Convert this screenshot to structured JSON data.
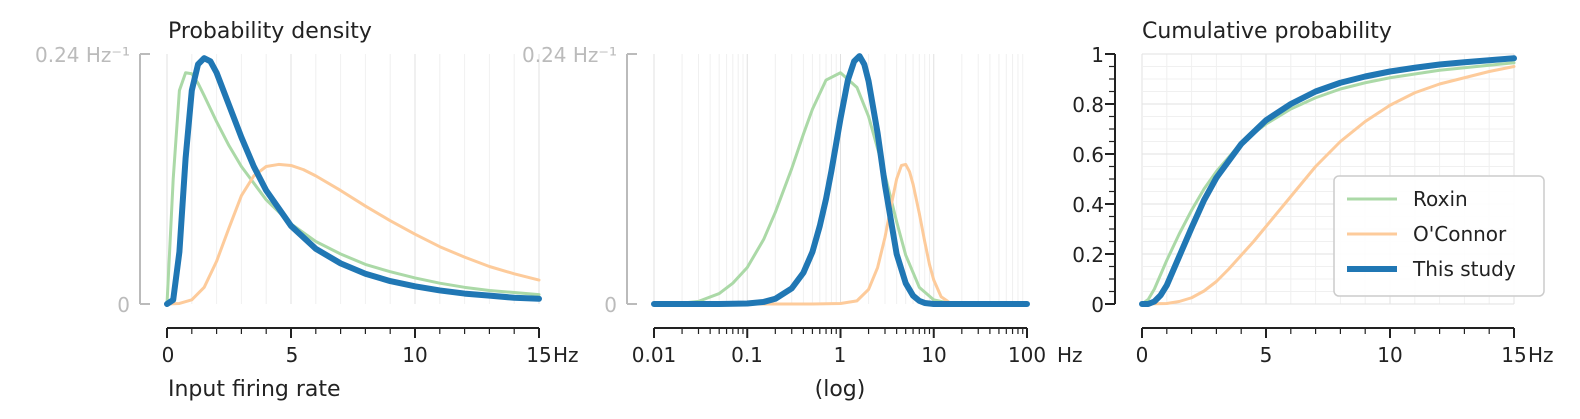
{
  "colors": {
    "roxin": "#abd9a7",
    "oconnor": "#fdcb9b",
    "this_study": "#2077b4",
    "grey_axis": "#bbbbbb",
    "grid": "#e6e6e6"
  },
  "series_names": [
    "Roxin",
    "O'Connor",
    "This study"
  ],
  "chart_data": [
    {
      "type": "line",
      "title": "Probability density",
      "xlabel": "Input firing rate",
      "x_unit": "Hz",
      "xlim": [
        0,
        15
      ],
      "x_ticks": [
        "0",
        "5",
        "10",
        "15"
      ],
      "y_ticks": [
        "0",
        "0.24 Hz⁻¹"
      ],
      "ylim": [
        0,
        0.24
      ],
      "grid": true,
      "series": [
        {
          "name": "Roxin",
          "x": [
            0,
            0.25,
            0.5,
            0.75,
            1,
            1.25,
            1.5,
            2,
            2.5,
            3,
            4,
            5,
            6,
            7,
            8,
            9,
            10,
            11,
            12,
            13,
            14,
            15
          ],
          "values": [
            0,
            0.12,
            0.205,
            0.222,
            0.221,
            0.212,
            0.2,
            0.175,
            0.152,
            0.132,
            0.1,
            0.077,
            0.06,
            0.048,
            0.038,
            0.031,
            0.025,
            0.02,
            0.016,
            0.013,
            0.011,
            0.009
          ]
        },
        {
          "name": "O'Connor",
          "x": [
            0,
            0.5,
            1,
            1.5,
            2,
            2.5,
            3,
            3.5,
            4,
            4.5,
            5,
            5.5,
            6,
            7,
            8,
            9,
            10,
            11,
            12,
            13,
            14,
            15
          ],
          "values": [
            0,
            0.0005,
            0.004,
            0.016,
            0.041,
            0.073,
            0.104,
            0.123,
            0.132,
            0.134,
            0.133,
            0.129,
            0.123,
            0.109,
            0.094,
            0.08,
            0.067,
            0.055,
            0.045,
            0.036,
            0.029,
            0.023
          ]
        },
        {
          "name": "This study",
          "x": [
            0,
            0.25,
            0.5,
            0.75,
            1,
            1.25,
            1.5,
            1.75,
            2,
            2.5,
            3,
            3.5,
            4,
            5,
            6,
            7,
            8,
            9,
            10,
            11,
            12,
            13,
            14,
            15
          ],
          "values": [
            0,
            0.004,
            0.05,
            0.14,
            0.205,
            0.23,
            0.236,
            0.233,
            0.222,
            0.191,
            0.16,
            0.132,
            0.109,
            0.075,
            0.053,
            0.039,
            0.029,
            0.022,
            0.017,
            0.013,
            0.01,
            0.008,
            0.006,
            0.005
          ]
        }
      ]
    },
    {
      "type": "line",
      "title": "",
      "xlabel": "(log)",
      "x_unit": "Hz",
      "x_scale": "log",
      "xlim": [
        0.01,
        100
      ],
      "x_ticks": [
        "0.01",
        "0.1",
        "1",
        "10",
        "100"
      ],
      "y_ticks": [
        "0",
        "0.24 Hz⁻¹"
      ],
      "ylim": [
        0,
        0.24
      ],
      "grid": true,
      "series": [
        {
          "name": "Roxin",
          "x": [
            0.01,
            0.02,
            0.03,
            0.05,
            0.07,
            0.1,
            0.15,
            0.2,
            0.3,
            0.4,
            0.5,
            0.7,
            1,
            1.5,
            2,
            3,
            4,
            5,
            7,
            10,
            15,
            20,
            30,
            50,
            100
          ],
          "values": [
            0,
            0.0008,
            0.0025,
            0.01,
            0.02,
            0.035,
            0.062,
            0.088,
            0.13,
            0.163,
            0.187,
            0.215,
            0.222,
            0.208,
            0.18,
            0.124,
            0.079,
            0.047,
            0.016,
            0.004,
            0.0005,
            0,
            0,
            0,
            0
          ]
        },
        {
          "name": "O'Connor",
          "x": [
            0.01,
            0.5,
            1,
            1.5,
            2,
            2.5,
            3,
            3.5,
            4,
            4.5,
            5,
            5.5,
            6,
            7,
            8,
            9,
            10,
            12,
            15,
            20,
            30,
            100
          ],
          "values": [
            0,
            0,
            0.0005,
            0.003,
            0.014,
            0.035,
            0.064,
            0.095,
            0.12,
            0.133,
            0.134,
            0.127,
            0.115,
            0.087,
            0.06,
            0.038,
            0.023,
            0.007,
            0.001,
            0,
            0,
            0
          ]
        },
        {
          "name": "This study",
          "x": [
            0.01,
            0.05,
            0.1,
            0.15,
            0.2,
            0.3,
            0.4,
            0.5,
            0.6,
            0.7,
            0.8,
            1,
            1.2,
            1.4,
            1.6,
            1.8,
            2,
            2.5,
            3,
            4,
            5,
            6,
            7,
            8,
            10,
            12,
            15,
            20,
            30,
            100
          ],
          "values": [
            0,
            0,
            0.0005,
            0.002,
            0.005,
            0.015,
            0.03,
            0.05,
            0.075,
            0.101,
            0.128,
            0.178,
            0.215,
            0.233,
            0.238,
            0.23,
            0.214,
            0.164,
            0.114,
            0.048,
            0.02,
            0.008,
            0.003,
            0.001,
            0,
            0,
            0,
            0,
            0,
            0
          ]
        }
      ]
    },
    {
      "type": "line",
      "title": "Cumulative probability",
      "xlabel": "",
      "x_unit": "Hz",
      "xlim": [
        0,
        15
      ],
      "x_ticks": [
        "0",
        "5",
        "10",
        "15"
      ],
      "y_ticks": [
        "0",
        "0.2",
        "0.4",
        "0.6",
        "0.8",
        "1"
      ],
      "ylim": [
        0,
        1
      ],
      "grid": true,
      "legend": "lower-right",
      "series": [
        {
          "name": "Roxin",
          "x": [
            0,
            0.25,
            0.5,
            1,
            1.5,
            2,
            2.5,
            3,
            4,
            5,
            6,
            7,
            8,
            9,
            10,
            11,
            12,
            13,
            14,
            15
          ],
          "values": [
            0,
            0.018,
            0.06,
            0.175,
            0.28,
            0.375,
            0.46,
            0.53,
            0.645,
            0.72,
            0.78,
            0.825,
            0.86,
            0.885,
            0.905,
            0.92,
            0.935,
            0.945,
            0.955,
            0.965
          ]
        },
        {
          "name": "O'Connor",
          "x": [
            0,
            1,
            1.5,
            2,
            2.5,
            3,
            3.5,
            4,
            4.5,
            5,
            6,
            7,
            8,
            9,
            10,
            11,
            12,
            13,
            14,
            15
          ],
          "values": [
            0,
            0.002,
            0.01,
            0.025,
            0.052,
            0.09,
            0.14,
            0.195,
            0.25,
            0.31,
            0.43,
            0.55,
            0.65,
            0.73,
            0.795,
            0.845,
            0.88,
            0.905,
            0.93,
            0.95
          ]
        },
        {
          "name": "This study",
          "x": [
            0,
            0.25,
            0.5,
            0.75,
            1,
            1.5,
            2,
            2.5,
            3,
            4,
            5,
            6,
            7,
            8,
            9,
            10,
            11,
            12,
            13,
            14,
            15
          ],
          "values": [
            0,
            0.0,
            0.01,
            0.035,
            0.075,
            0.19,
            0.305,
            0.415,
            0.505,
            0.64,
            0.735,
            0.8,
            0.85,
            0.885,
            0.91,
            0.93,
            0.945,
            0.958,
            0.967,
            0.975,
            0.983
          ]
        }
      ]
    }
  ]
}
